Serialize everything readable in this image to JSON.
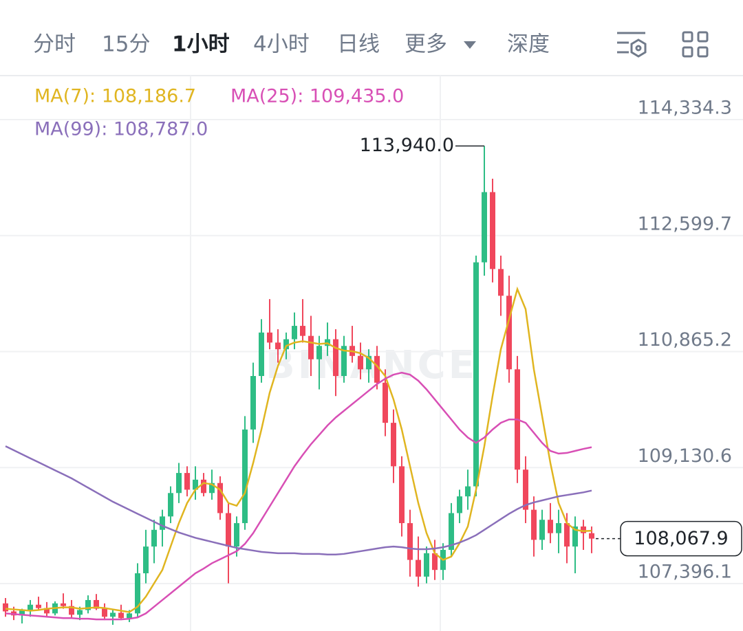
{
  "tabs": [
    "分时",
    "15分",
    "1小时",
    "4小时",
    "日线",
    "更多",
    "深度"
  ],
  "active_tab": 2,
  "chart_data": {
    "type": "candlestick",
    "up_color": "#2ebd85",
    "down_color": "#f0475c",
    "ylim": [
      106686.9,
      114992.1
    ],
    "yticks": [
      {
        "value": 107396.1,
        "label": "107,396.1"
      },
      {
        "value": 109130.6,
        "label": "109,130.6"
      },
      {
        "value": 110865.2,
        "label": "110,865.2"
      },
      {
        "value": 112599.7,
        "label": "112,599.7"
      },
      {
        "value": 114334.3,
        "label": "114,334.3"
      }
    ],
    "grid": true,
    "watermark": "BINANCE",
    "high_label": {
      "value": 113940.0,
      "label": "113,940.0"
    },
    "last_price": {
      "value": 108067.9,
      "label": "108,067.9"
    },
    "ohlc": [
      [
        107100,
        107180,
        106900,
        106980
      ],
      [
        106980,
        107050,
        106850,
        106920
      ],
      [
        106920,
        107020,
        106800,
        106990
      ],
      [
        106990,
        107150,
        106900,
        107080
      ],
      [
        107080,
        107200,
        107000,
        107030
      ],
      [
        107030,
        107120,
        106900,
        106950
      ],
      [
        106950,
        107130,
        106920,
        107100
      ],
      [
        107100,
        107250,
        107020,
        107060
      ],
      [
        107060,
        107150,
        106880,
        106930
      ],
      [
        106930,
        107050,
        106850,
        107000
      ],
      [
        107000,
        107220,
        106950,
        107150
      ],
      [
        107150,
        107240,
        107000,
        107020
      ],
      [
        107020,
        107100,
        106850,
        106900
      ],
      [
        106900,
        107000,
        106780,
        106960
      ],
      [
        106960,
        107080,
        106850,
        106880
      ],
      [
        106880,
        107000,
        106820,
        106950
      ],
      [
        106950,
        107700,
        106900,
        107550
      ],
      [
        107550,
        108200,
        107400,
        107950
      ],
      [
        107950,
        108350,
        107700,
        108200
      ],
      [
        108200,
        108500,
        107950,
        108400
      ],
      [
        108400,
        108850,
        108300,
        108750
      ],
      [
        108750,
        109200,
        108600,
        109050
      ],
      [
        109050,
        109150,
        108700,
        108800
      ],
      [
        108800,
        109150,
        108650,
        108950
      ],
      [
        108950,
        109050,
        108700,
        108750
      ],
      [
        108750,
        109100,
        108650,
        108900
      ],
      [
        108900,
        109000,
        108350,
        108450
      ],
      [
        108450,
        108600,
        107400,
        107950
      ],
      [
        107950,
        108400,
        107800,
        108300
      ],
      [
        108300,
        109900,
        108200,
        109700
      ],
      [
        109700,
        110700,
        109500,
        110500
      ],
      [
        110500,
        111350,
        110400,
        111150
      ],
      [
        111150,
        111650,
        110900,
        111000
      ],
      [
        111000,
        111200,
        110700,
        110900
      ],
      [
        110900,
        111150,
        110750,
        111050
      ],
      [
        111050,
        111450,
        110900,
        111250
      ],
      [
        111250,
        111650,
        111000,
        111100
      ],
      [
        111100,
        111400,
        110500,
        110750
      ],
      [
        110750,
        111100,
        110300,
        110950
      ],
      [
        110950,
        111300,
        110800,
        111050
      ],
      [
        111050,
        111200,
        110200,
        110500
      ],
      [
        110500,
        111100,
        110400,
        110950
      ],
      [
        110950,
        111250,
        110700,
        110800
      ],
      [
        110800,
        111000,
        110450,
        110600
      ],
      [
        110600,
        110900,
        110400,
        110800
      ],
      [
        110800,
        110950,
        110300,
        110400
      ],
      [
        110400,
        110600,
        109600,
        109800
      ],
      [
        109800,
        110000,
        108900,
        109150
      ],
      [
        109150,
        109300,
        108100,
        108300
      ],
      [
        108300,
        108500,
        107500,
        107750
      ],
      [
        107750,
        108100,
        107350,
        107500
      ],
      [
        107500,
        107950,
        107400,
        107850
      ],
      [
        107850,
        108050,
        107450,
        107600
      ],
      [
        107600,
        108000,
        107450,
        107900
      ],
      [
        107900,
        108600,
        107800,
        108450
      ],
      [
        108450,
        108800,
        108300,
        108700
      ],
      [
        108700,
        109100,
        108500,
        108850
      ],
      [
        108850,
        112300,
        108700,
        112200
      ],
      [
        112200,
        113940,
        112000,
        113250
      ],
      [
        113250,
        113450,
        111900,
        112100
      ],
      [
        112100,
        112300,
        111400,
        111700
      ],
      [
        111700,
        112000,
        110400,
        110600
      ],
      [
        110600,
        110800,
        108900,
        109100
      ],
      [
        109100,
        109300,
        108300,
        108500
      ],
      [
        108500,
        108700,
        107800,
        108050
      ],
      [
        108050,
        108500,
        107900,
        108350
      ],
      [
        108350,
        108600,
        108000,
        108150
      ],
      [
        108150,
        108500,
        107850,
        108300
      ],
      [
        108300,
        108450,
        107700,
        107950
      ],
      [
        107950,
        108400,
        107550,
        108250
      ],
      [
        108250,
        108350,
        107900,
        108150
      ],
      [
        108150,
        108250,
        107850,
        108067.9
      ]
    ],
    "series": [
      {
        "name": "MA(7): 108,186.7",
        "color": "#e0b520",
        "values": [
          107020,
          107010,
          107000,
          106990,
          107000,
          107020,
          107030,
          107040,
          107040,
          107020,
          107030,
          107040,
          107030,
          107010,
          106990,
          106970,
          107050,
          107200,
          107400,
          107600,
          107950,
          108300,
          108600,
          108800,
          108900,
          108880,
          108800,
          108600,
          108560,
          108750,
          109200,
          109700,
          110250,
          110650,
          110950,
          111000,
          111020,
          111000,
          110980,
          110990,
          110920,
          110880,
          110870,
          110840,
          110770,
          110650,
          110500,
          110150,
          109700,
          109150,
          108600,
          108150,
          107850,
          107750,
          107800,
          108000,
          108250,
          108800,
          109450,
          110200,
          110900,
          111350,
          111800,
          111500,
          110600,
          109900,
          109200,
          108600,
          108300,
          108200,
          108180,
          108186.7
        ]
      },
      {
        "name": "MA(25): 109,435.0",
        "color": "#d84fb5",
        "values": [
          106950,
          106940,
          106930,
          106920,
          106910,
          106900,
          106890,
          106880,
          106880,
          106870,
          106870,
          106860,
          106860,
          106860,
          106860,
          106870,
          106890,
          106950,
          107050,
          107150,
          107250,
          107350,
          107450,
          107550,
          107620,
          107700,
          107760,
          107820,
          107880,
          107990,
          108150,
          108350,
          108550,
          108750,
          108950,
          109150,
          109320,
          109480,
          109620,
          109760,
          109880,
          109980,
          110080,
          110180,
          110280,
          110380,
          110460,
          110520,
          110550,
          110520,
          110430,
          110300,
          110150,
          110000,
          109850,
          109700,
          109580,
          109500,
          109580,
          109700,
          109800,
          109850,
          109850,
          109800,
          109650,
          109500,
          109380,
          109340,
          109350,
          109380,
          109410,
          109435.0
        ]
      },
      {
        "name": "MA(99): 108,787.0",
        "color": "#8a6fba",
        "values": [
          109450,
          109390,
          109330,
          109270,
          109210,
          109150,
          109090,
          109030,
          108970,
          108900,
          108830,
          108760,
          108690,
          108620,
          108560,
          108500,
          108440,
          108380,
          108320,
          108260,
          108210,
          108160,
          108120,
          108080,
          108050,
          108020,
          107990,
          107960,
          107930,
          107910,
          107890,
          107870,
          107860,
          107850,
          107850,
          107850,
          107840,
          107840,
          107840,
          107830,
          107830,
          107840,
          107860,
          107880,
          107900,
          107920,
          107940,
          107950,
          107940,
          107920,
          107910,
          107910,
          107920,
          107940,
          107970,
          108010,
          108060,
          108120,
          108200,
          108280,
          108360,
          108440,
          108510,
          108570,
          108610,
          108640,
          108670,
          108700,
          108720,
          108740,
          108760,
          108787.0
        ]
      }
    ]
  }
}
